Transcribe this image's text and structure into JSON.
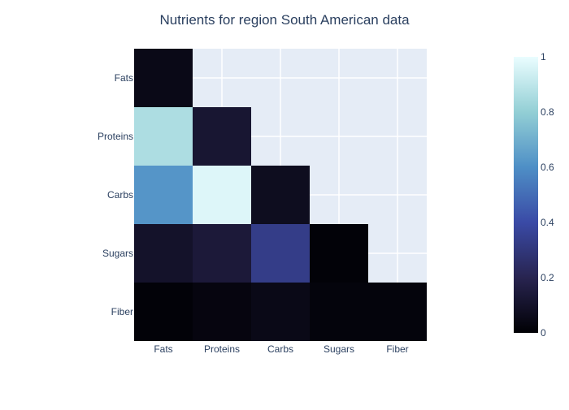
{
  "chart_data": {
    "type": "heatmap",
    "title": "Nutrients for region South American data",
    "x_categories": [
      "Fats",
      "Proteins",
      "Carbs",
      "Sugars",
      "Fiber"
    ],
    "y_categories": [
      "Fats",
      "Proteins",
      "Carbs",
      "Sugars",
      "Fiber"
    ],
    "z": [
      [
        0.05,
        null,
        null,
        null,
        null
      ],
      [
        0.86,
        0.12,
        null,
        null,
        null
      ],
      [
        0.62,
        0.97,
        0.07,
        null,
        null
      ],
      [
        0.1,
        0.14,
        0.33,
        0.01,
        null
      ],
      [
        0.01,
        0.03,
        0.05,
        0.02,
        0.02
      ]
    ],
    "zmin": 0,
    "zmax": 1,
    "colorscale": [
      [
        0.0,
        "#000004"
      ],
      [
        0.2,
        "#282450"
      ],
      [
        0.4,
        "#3a4aa6"
      ],
      [
        0.6,
        "#4e8fc6"
      ],
      [
        0.8,
        "#93cfd5"
      ],
      [
        1.0,
        "#eafdff"
      ]
    ],
    "colorbar_ticks": [
      "0",
      "0.2",
      "0.4",
      "0.6",
      "0.8",
      "1"
    ],
    "colorbar_tick_values": [
      0,
      0.2,
      0.4,
      0.6,
      0.8,
      1
    ],
    "plot_background": "#e5ecf6",
    "grid": true,
    "text_color": "#2a3f5f"
  }
}
